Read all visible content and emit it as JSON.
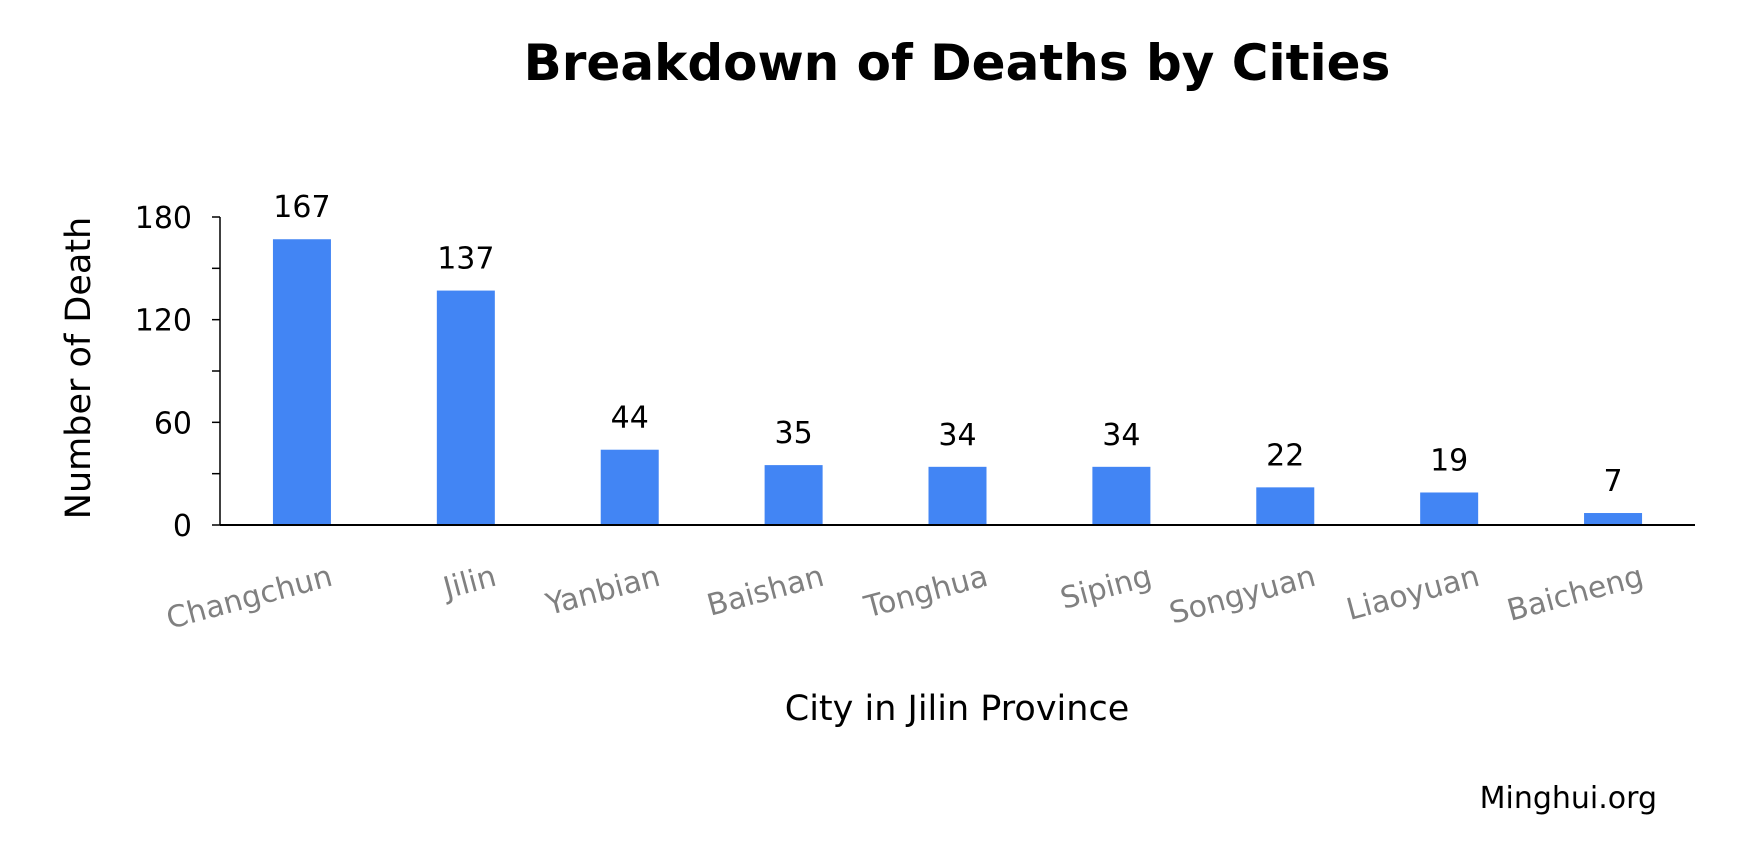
{
  "chart_data": {
    "type": "bar",
    "title": "Breakdown of Deaths by Cities",
    "xlabel": "City in Jilin Province",
    "ylabel": "Number of Death",
    "categories": [
      "Changchun",
      "Jilin",
      "Yanbian",
      "Baishan",
      "Tonghua",
      "Siping",
      "Songyuan",
      "Liaoyuan",
      "Baicheng"
    ],
    "values": [
      167,
      137,
      44,
      35,
      34,
      34,
      22,
      19,
      7
    ],
    "ylim": [
      0,
      180
    ],
    "yticks": [
      0,
      60,
      120,
      180
    ],
    "grid": false,
    "legend": "none",
    "bar_color": "#4285F4",
    "xtick_color": "#808080"
  },
  "source": "Minghui.org"
}
